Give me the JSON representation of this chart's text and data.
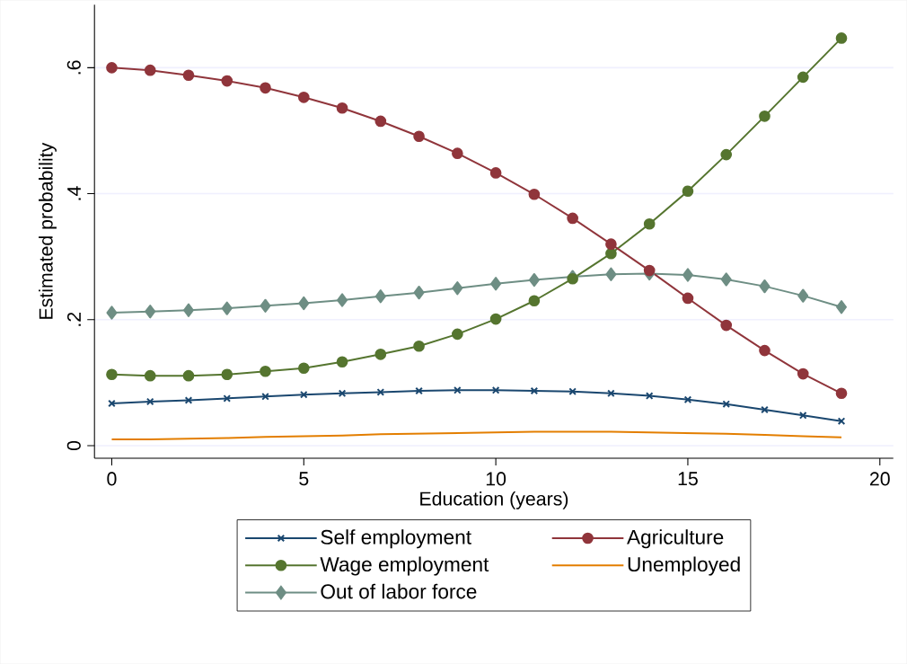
{
  "chart_data": {
    "type": "line",
    "xlabel": "Education (years)",
    "ylabel": "Estimated probability",
    "x": [
      0,
      1,
      2,
      3,
      4,
      5,
      6,
      7,
      8,
      9,
      10,
      11,
      12,
      13,
      14,
      15,
      16,
      17,
      18,
      19
    ],
    "series": [
      {
        "name": "Self employment",
        "color": "#1a476f",
        "marker": "cross",
        "values": [
          0.067,
          0.07,
          0.072,
          0.075,
          0.078,
          0.081,
          0.083,
          0.085,
          0.087,
          0.088,
          0.088,
          0.087,
          0.086,
          0.083,
          0.079,
          0.073,
          0.066,
          0.057,
          0.048,
          0.039
        ]
      },
      {
        "name": "Agriculture",
        "color": "#90353b",
        "marker": "circle",
        "values": [
          0.6,
          0.596,
          0.588,
          0.579,
          0.568,
          0.553,
          0.536,
          0.515,
          0.491,
          0.464,
          0.433,
          0.399,
          0.361,
          0.32,
          0.278,
          0.234,
          0.191,
          0.151,
          0.114,
          0.083
        ]
      },
      {
        "name": "Wage employment",
        "color": "#55752f",
        "marker": "circle",
        "values": [
          0.113,
          0.111,
          0.111,
          0.113,
          0.118,
          0.123,
          0.133,
          0.145,
          0.158,
          0.177,
          0.201,
          0.23,
          0.265,
          0.305,
          0.352,
          0.404,
          0.462,
          0.523,
          0.585,
          0.647
        ]
      },
      {
        "name": "Unemployed",
        "color": "#e37e00",
        "marker": "none",
        "values": [
          0.01,
          0.01,
          0.011,
          0.012,
          0.014,
          0.015,
          0.016,
          0.018,
          0.019,
          0.02,
          0.021,
          0.022,
          0.022,
          0.022,
          0.021,
          0.02,
          0.019,
          0.017,
          0.015,
          0.013
        ]
      },
      {
        "name": "Out of labor force",
        "color": "#6e8e84",
        "marker": "diamond",
        "values": [
          0.211,
          0.213,
          0.215,
          0.218,
          0.222,
          0.226,
          0.231,
          0.237,
          0.243,
          0.25,
          0.257,
          0.263,
          0.268,
          0.272,
          0.273,
          0.271,
          0.264,
          0.253,
          0.238,
          0.22
        ]
      }
    ],
    "xlim": [
      -0.45,
      20.35
    ],
    "ylim": [
      -0.02,
      0.7
    ],
    "xticks": [
      0,
      5,
      10,
      15,
      20
    ],
    "yticks": [
      0,
      {
        "value": 0.2,
        "label": ".2"
      },
      {
        "value": 0.4,
        "label": ".4"
      },
      {
        "value": 0.6,
        "label": ".6"
      }
    ],
    "grid": "y",
    "legend": "bottom",
    "line_style": "solid"
  }
}
